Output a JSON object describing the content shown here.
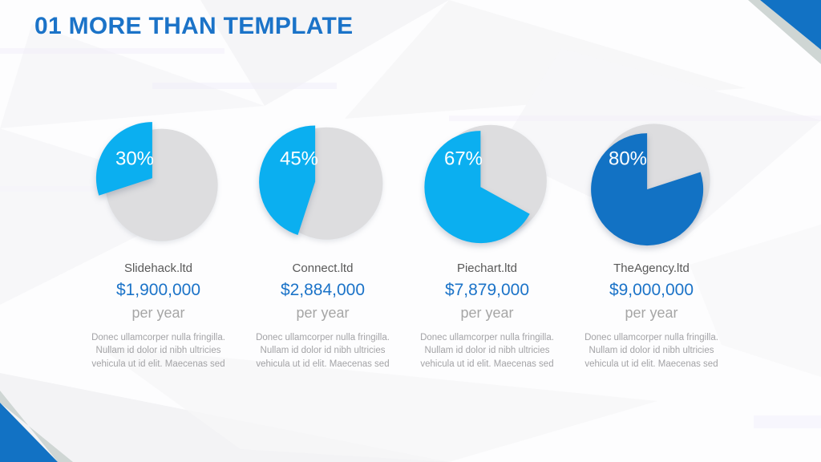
{
  "slide": {
    "title": "01 MORE THAN TEMPLATE",
    "colors": {
      "accent": "#1B73C8",
      "cyan": "#0BAFF0",
      "dark_blue": "#1272C4",
      "pie_remainder": "#DDDDDF",
      "corner_band": "#CFD6D4",
      "company_text": "#595959",
      "muted_text": "#A6A6A6",
      "body_text": "#A3A3A6"
    }
  },
  "chart_data": [
    {
      "type": "pie",
      "percent": 30,
      "percent_label": "30%",
      "segments": {
        "filled": 30,
        "remainder": 70
      },
      "company": "Slidehack.ltd",
      "value": "$1,900,000",
      "period": "per year",
      "description": "Donec ullamcorper nulla fringilla. Nullam id dolor id nibh ultricies vehicula ut id elit. Maecenas sed",
      "slice_color": "#0BAFF0",
      "remainder_color": "#DDDDDF"
    },
    {
      "type": "pie",
      "percent": 45,
      "percent_label": "45%",
      "segments": {
        "filled": 45,
        "remainder": 55
      },
      "company": "Connect.ltd",
      "value": "$2,884,000",
      "period": "per year",
      "description": "Donec ullamcorper nulla fringilla. Nullam id dolor id nibh ultricies vehicula ut id elit. Maecenas sed",
      "slice_color": "#0BAFF0",
      "remainder_color": "#DDDDDF"
    },
    {
      "type": "pie",
      "percent": 67,
      "percent_label": "67%",
      "segments": {
        "filled": 67,
        "remainder": 33
      },
      "company": "Piechart.ltd",
      "value": "$7,879,000",
      "period": "per year",
      "description": "Donec ullamcorper nulla fringilla. Nullam id dolor id nibh ultricies vehicula ut id elit. Maecenas sed",
      "slice_color": "#0BAFF0",
      "remainder_color": "#DDDDDF"
    },
    {
      "type": "pie",
      "percent": 80,
      "percent_label": "80%",
      "segments": {
        "filled": 80,
        "remainder": 20
      },
      "company": "TheAgency.ltd",
      "value": "$9,000,000",
      "period": "per year",
      "description": "Donec ullamcorper nulla fringilla. Nullam id dolor id nibh ultricies vehicula ut id elit. Maecenas sed",
      "slice_color": "#1272C4",
      "remainder_color": "#DDDDDF"
    }
  ]
}
